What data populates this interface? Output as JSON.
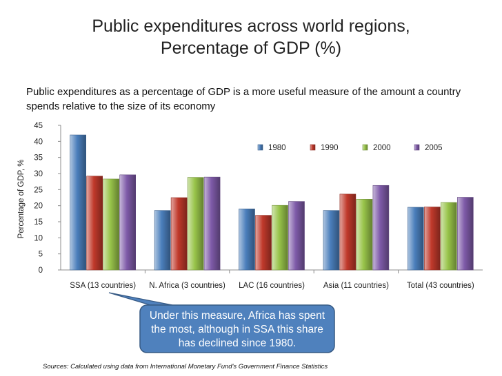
{
  "title_line1": "Public expenditures across world regions,",
  "title_line2": "Percentage of GDP (%)",
  "subtitle": "Public expenditures as a percentage of GDP is a more useful measure of the amount a country spends relative to the size of its economy",
  "callout": "Under this measure, Africa has spent the most, although in SSA this share has declined since 1980.",
  "sources": "Sources: Calculated using data from International Monetary Fund's Government Finance Statistics",
  "colors": {
    "s1980": "#4a7ebb",
    "s1990": "#c0392b",
    "s2000": "#98c44a",
    "s2005": "#7e5aa8",
    "callout": "#4f81bd"
  },
  "chart_data": {
    "type": "bar",
    "title": "Public expenditures across world regions, Percentage of GDP (%)",
    "xlabel": "",
    "ylabel": "Percentage of GDP, %",
    "ylim": [
      0,
      45
    ],
    "yticks": [
      0,
      5,
      10,
      15,
      20,
      25,
      30,
      35,
      40,
      45
    ],
    "grid": false,
    "legend_position": "top-right",
    "categories": [
      "SSA (13 countries)",
      "N. Africa (3 countries)",
      "LAC (16 countries)",
      "Asia (11 countries)",
      "Total (43 countries)"
    ],
    "series": [
      {
        "name": "1980",
        "values": [
          42.0,
          18.5,
          19.0,
          18.5,
          19.5
        ]
      },
      {
        "name": "1990",
        "values": [
          29.2,
          22.5,
          17.0,
          23.6,
          19.6
        ]
      },
      {
        "name": "2000",
        "values": [
          28.3,
          28.8,
          20.1,
          22.0,
          21.0
        ]
      },
      {
        "name": "2005",
        "values": [
          29.6,
          28.9,
          21.3,
          26.3,
          22.6
        ]
      }
    ]
  }
}
